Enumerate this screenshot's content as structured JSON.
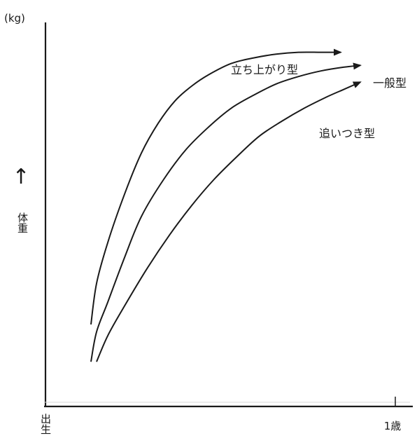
{
  "chart_data": {
    "type": "line",
    "title": "",
    "ylabel_unit": "(kg)",
    "ylabel": "体重",
    "ylabel_arrow": "↑",
    "xlabel": "",
    "x_start_label": "出生",
    "x_end_label": "1歳",
    "grid": false,
    "legend": "labels placed at curve ends",
    "line_color": "#1a1a1a",
    "series": [
      {
        "name": "立ち上がり型",
        "x": [
          0.0,
          0.02,
          0.06,
          0.12,
          0.18,
          0.24,
          0.3,
          0.36,
          0.42,
          0.5,
          0.58,
          0.66,
          0.74,
          0.82,
          0.89
        ],
        "y": [
          0.22,
          0.33,
          0.44,
          0.57,
          0.68,
          0.76,
          0.82,
          0.86,
          0.89,
          0.92,
          0.935,
          0.945,
          0.95,
          0.95,
          0.95
        ]
      },
      {
        "name": "一般型",
        "x": [
          0.0,
          0.02,
          0.06,
          0.12,
          0.18,
          0.26,
          0.34,
          0.42,
          0.5,
          0.58,
          0.66,
          0.74,
          0.82,
          0.9,
          0.96
        ],
        "y": [
          0.12,
          0.2,
          0.28,
          0.4,
          0.51,
          0.61,
          0.69,
          0.75,
          0.8,
          0.835,
          0.865,
          0.885,
          0.9,
          0.91,
          0.915
        ]
      },
      {
        "name": "追いつき型",
        "x": [
          0.02,
          0.06,
          0.12,
          0.2,
          0.28,
          0.36,
          0.44,
          0.52,
          0.6,
          0.68,
          0.76,
          0.84,
          0.9,
          0.96
        ],
        "y": [
          0.12,
          0.19,
          0.27,
          0.37,
          0.46,
          0.54,
          0.61,
          0.67,
          0.725,
          0.765,
          0.8,
          0.83,
          0.85,
          0.87
        ]
      }
    ]
  }
}
